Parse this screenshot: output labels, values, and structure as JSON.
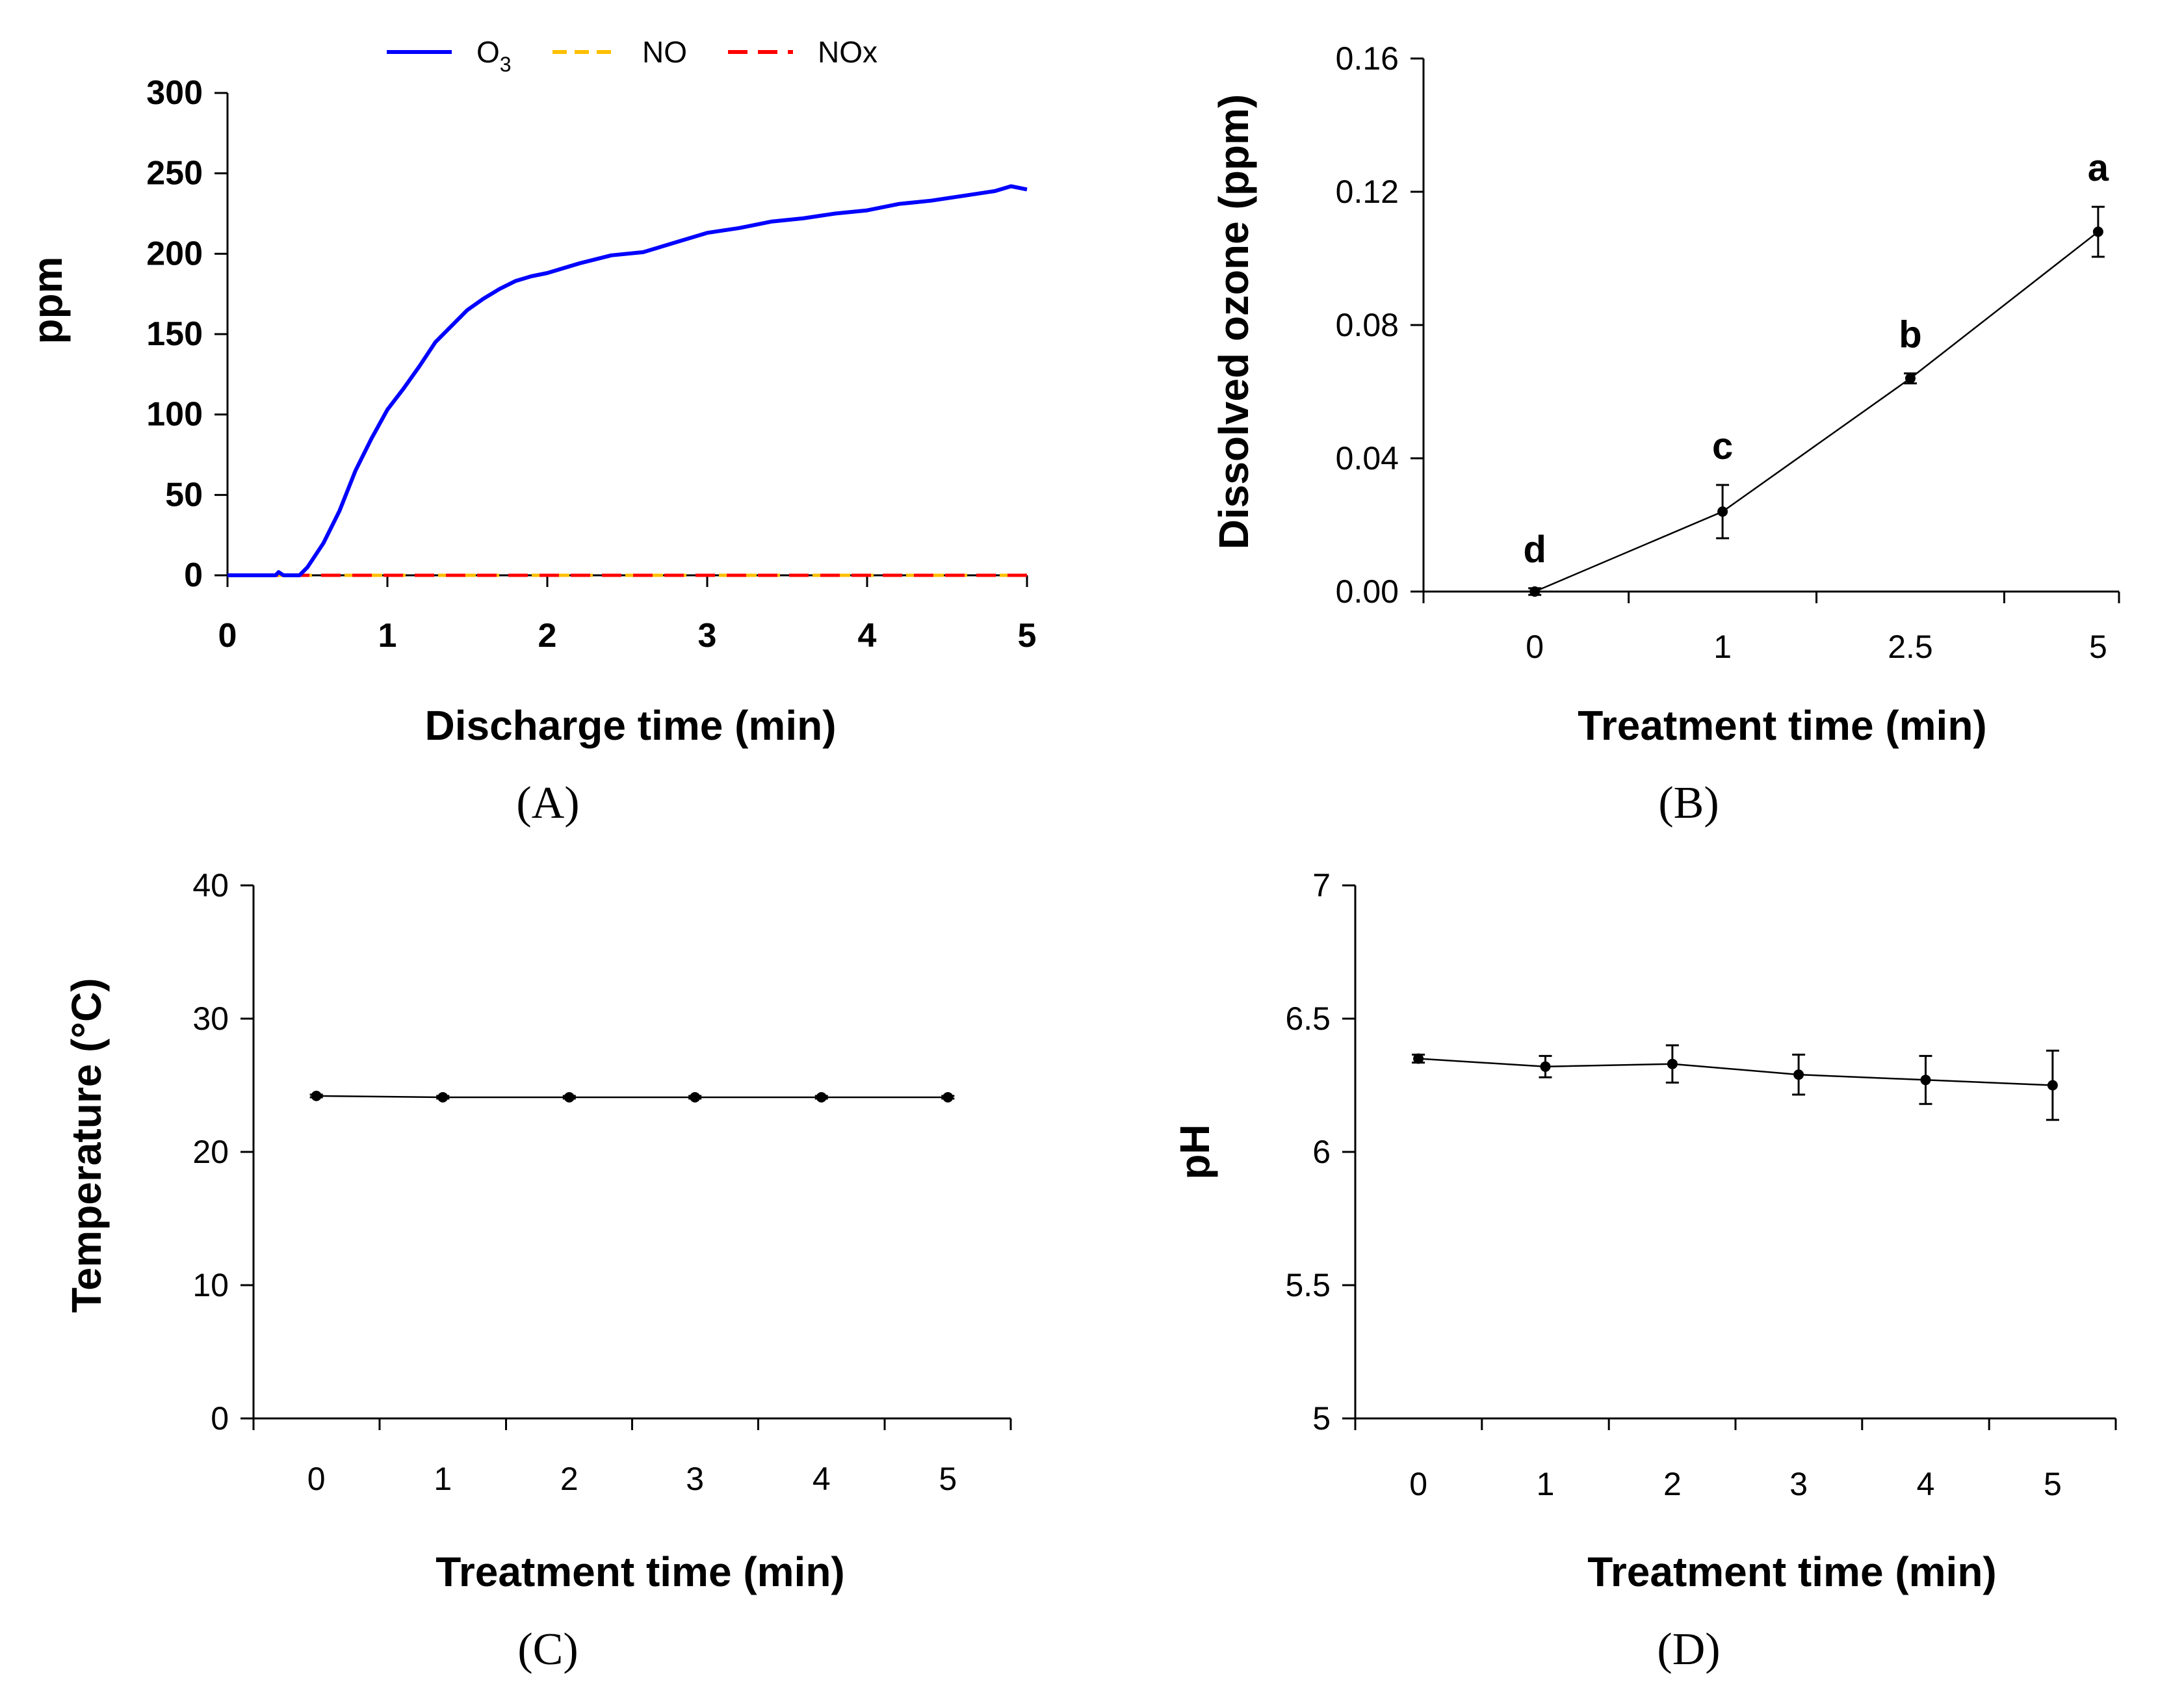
{
  "chart_data": [
    {
      "panel": "(A)",
      "type": "line",
      "xlabel": "Discharge time (min)",
      "ylabel": "ppm",
      "xlim": [
        0,
        5
      ],
      "ylim": [
        0,
        300
      ],
      "xticks": [
        "0",
        "1",
        "2",
        "3",
        "4",
        "5"
      ],
      "yticks": [
        "0",
        "50",
        "100",
        "150",
        "200",
        "250",
        "300"
      ],
      "legend_position": "top",
      "series": [
        {
          "name": "O3",
          "color": "#0000ff",
          "style": "solid",
          "points": [
            [
              0,
              0
            ],
            [
              0.3,
              0
            ],
            [
              0.32,
              2
            ],
            [
              0.35,
              0
            ],
            [
              0.45,
              0
            ],
            [
              0.5,
              5
            ],
            [
              0.6,
              20
            ],
            [
              0.7,
              40
            ],
            [
              0.8,
              65
            ],
            [
              0.9,
              85
            ],
            [
              1.0,
              103
            ],
            [
              1.1,
              116
            ],
            [
              1.2,
              130
            ],
            [
              1.3,
              145
            ],
            [
              1.4,
              155
            ],
            [
              1.5,
              165
            ],
            [
              1.6,
              172
            ],
            [
              1.7,
              178
            ],
            [
              1.8,
              183
            ],
            [
              1.9,
              186
            ],
            [
              2.0,
              188
            ],
            [
              2.2,
              194
            ],
            [
              2.4,
              199
            ],
            [
              2.6,
              201
            ],
            [
              2.8,
              207
            ],
            [
              3.0,
              213
            ],
            [
              3.2,
              216
            ],
            [
              3.4,
              220
            ],
            [
              3.6,
              222
            ],
            [
              3.8,
              225
            ],
            [
              4.0,
              227
            ],
            [
              4.2,
              231
            ],
            [
              4.4,
              233
            ],
            [
              4.6,
              236
            ],
            [
              4.8,
              239
            ],
            [
              4.9,
              242
            ],
            [
              5.0,
              240
            ]
          ]
        },
        {
          "name": "NO",
          "color": "#ffc000",
          "style": "dashed",
          "points": [
            [
              0,
              0
            ],
            [
              5,
              0
            ]
          ]
        },
        {
          "name": "NOx",
          "color": "#ff0000",
          "style": "dashed",
          "points": [
            [
              0,
              0
            ],
            [
              5,
              0
            ]
          ]
        }
      ]
    },
    {
      "panel": "(B)",
      "type": "line",
      "xlabel": "Treatment time (min)",
      "ylabel": "Dissolved ozone (ppm)",
      "categories": [
        "0",
        "1",
        "2.5",
        "5"
      ],
      "ylim": [
        0,
        0.16
      ],
      "yticks": [
        "0.00",
        "0.04",
        "0.08",
        "0.12",
        "0.16"
      ],
      "series": [
        {
          "values": [
            0.0,
            0.024,
            0.064,
            0.108
          ],
          "errors": [
            0.001,
            0.008,
            0.0015,
            0.0075
          ],
          "labels": [
            "d",
            "c",
            "b",
            "a"
          ]
        }
      ]
    },
    {
      "panel": "(C)",
      "type": "line",
      "xlabel": "Treatment time (min)",
      "ylabel": "Temperature (°C)",
      "categories": [
        "0",
        "1",
        "2",
        "3",
        "4",
        "5"
      ],
      "ylim": [
        0,
        40
      ],
      "yticks": [
        "0",
        "10",
        "20",
        "30",
        "40"
      ],
      "series": [
        {
          "values": [
            24.2,
            24.1,
            24.1,
            24.1,
            24.1,
            24.1
          ],
          "errors": [
            0.1,
            0.1,
            0.1,
            0.1,
            0.1,
            0.1
          ]
        }
      ]
    },
    {
      "panel": "(D)",
      "type": "line",
      "xlabel": "Treatment time (min)",
      "ylabel": "pH",
      "categories": [
        "0",
        "1",
        "2",
        "3",
        "4",
        "5"
      ],
      "ylim": [
        5,
        7
      ],
      "yticks": [
        "5",
        "5.5",
        "6",
        "6.5",
        "7"
      ],
      "series": [
        {
          "values": [
            6.35,
            6.32,
            6.33,
            6.29,
            6.27,
            6.25
          ],
          "errors": [
            0.015,
            0.04,
            0.07,
            0.075,
            0.09,
            0.13
          ]
        }
      ]
    }
  ]
}
